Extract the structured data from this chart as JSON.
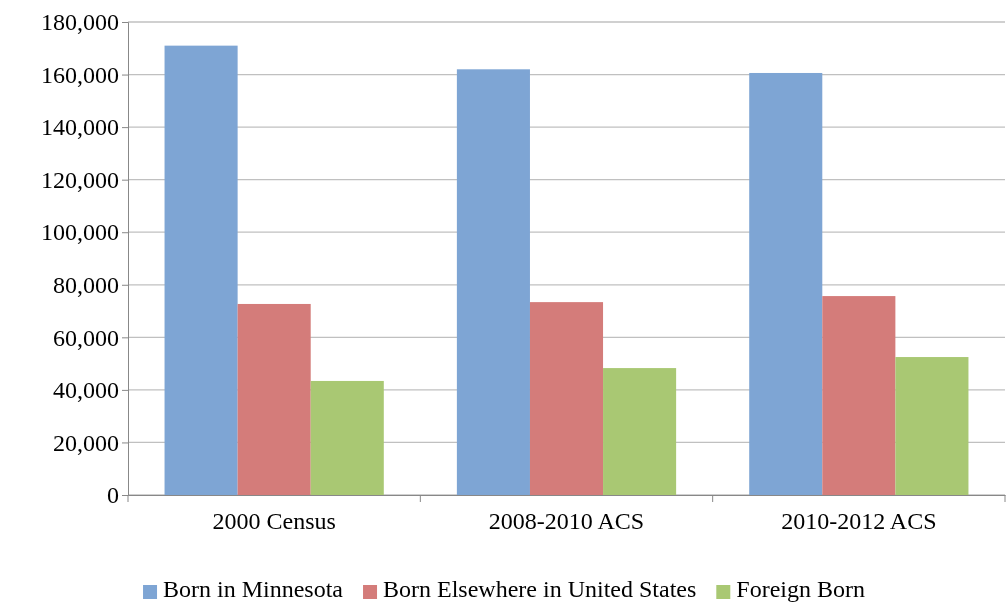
{
  "chart_data": {
    "type": "bar",
    "categories": [
      "2000 Census",
      "2008-2010 ACS",
      "2010-2012 ACS"
    ],
    "series": [
      {
        "name": "Born in Minnesota",
        "color": "#7ea5d4",
        "values": [
          171000,
          162000,
          160600
        ]
      },
      {
        "name": "Born Elsewhere in United States",
        "color": "#d47c7a",
        "values": [
          72700,
          73400,
          75700
        ]
      },
      {
        "name": "Foreign Born",
        "color": "#a9c873",
        "values": [
          43400,
          48300,
          52500
        ]
      }
    ],
    "ylim": [
      0,
      180000
    ],
    "yticks": [
      {
        "value": 0,
        "label": "0"
      },
      {
        "value": 20000,
        "label": "20,000"
      },
      {
        "value": 40000,
        "label": "40,000"
      },
      {
        "value": 60000,
        "label": "60,000"
      },
      {
        "value": 80000,
        "label": "80,000"
      },
      {
        "value": 100000,
        "label": "100,000"
      },
      {
        "value": 120000,
        "label": "120,000"
      },
      {
        "value": 140000,
        "label": "140,000"
      },
      {
        "value": 160000,
        "label": "160,000"
      },
      {
        "value": 180000,
        "label": "180,000"
      }
    ],
    "grid": "y",
    "legend": "bottom"
  }
}
